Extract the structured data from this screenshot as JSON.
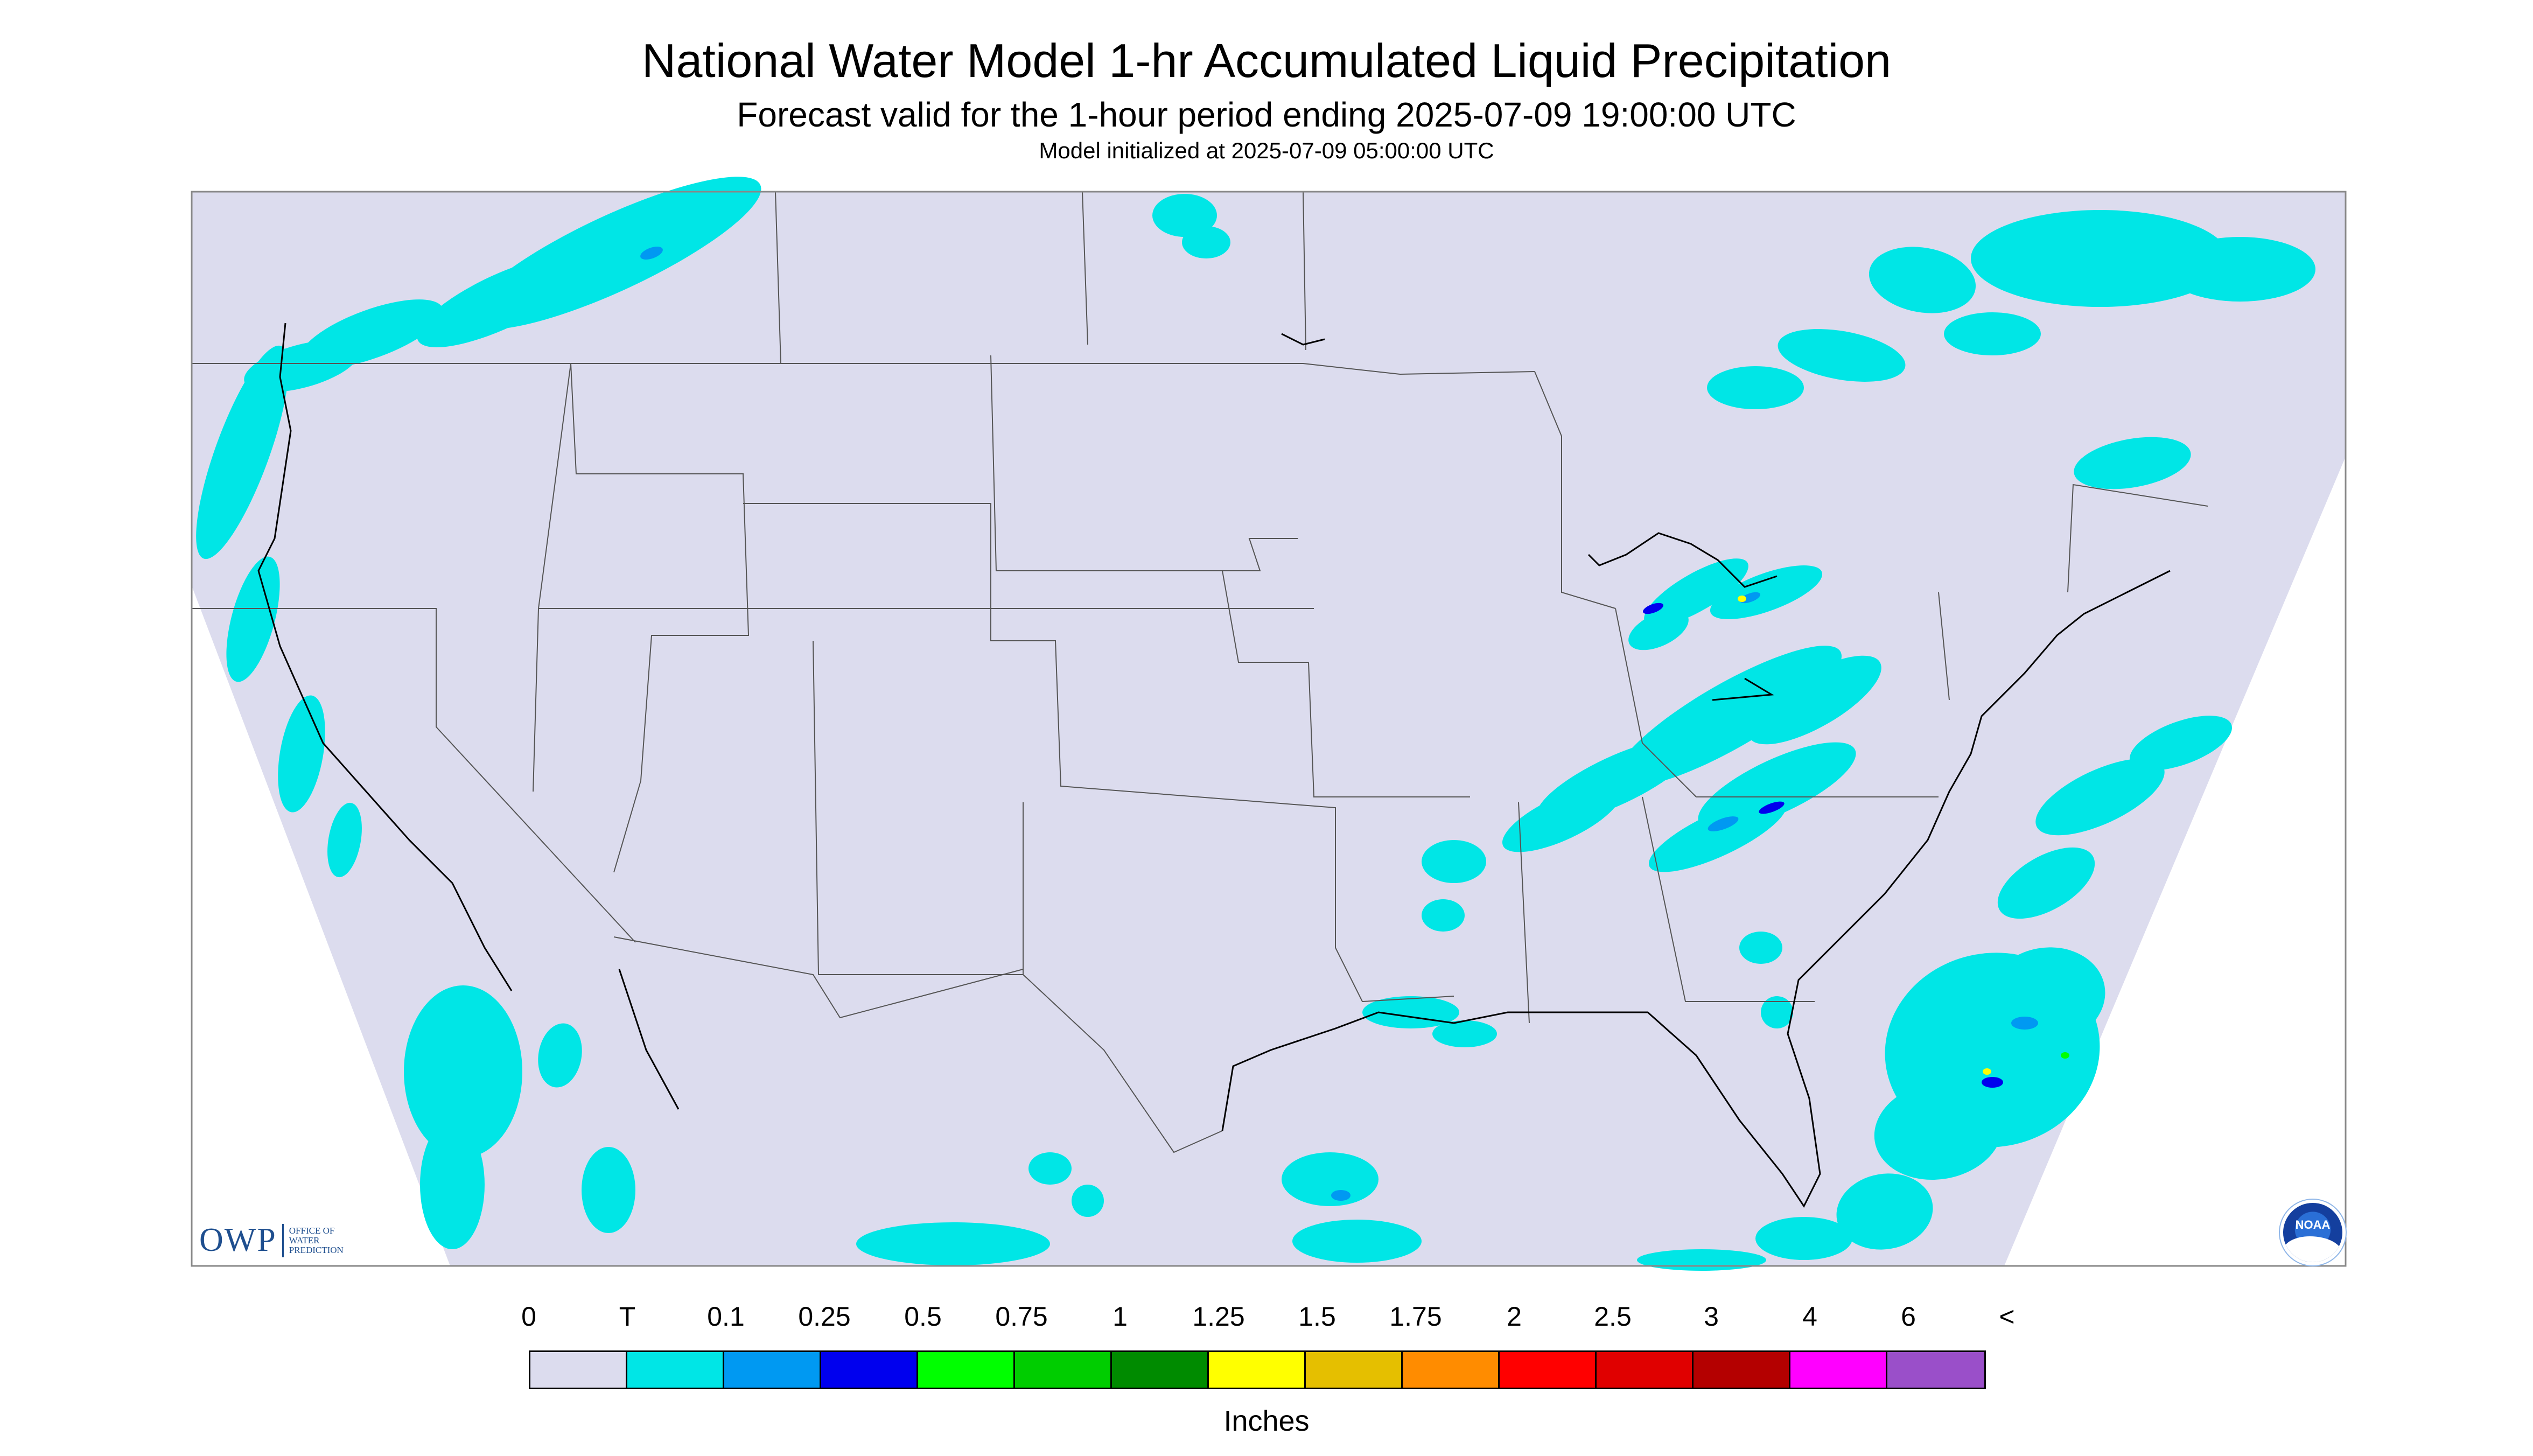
{
  "title": "National Water Model 1-hr Accumulated Liquid Precipitation",
  "subtitle": "Forecast valid for the 1-hour period ending 2025-07-09 19:00:00 UTC",
  "init_line": "Model initialized at 2025-07-09 05:00:00 UTC",
  "map": {
    "background_color": "#dcdcee",
    "outside_domain_color": "#ffffff",
    "boundary_color": "#555555",
    "coastline_color": "#000000"
  },
  "logos": {
    "owp_mark": "OWP",
    "owp_text": [
      "OFFICE OF",
      "WATER",
      "PREDICTION"
    ],
    "noaa_text": "NOAA"
  },
  "legend": {
    "unit_label": "Inches",
    "tick_labels": [
      "0",
      "T",
      "0.1",
      "0.25",
      "0.5",
      "0.75",
      "1",
      "1.25",
      "1.5",
      "1.75",
      "2",
      "2.5",
      "3",
      "4",
      "6",
      "<"
    ],
    "colors": [
      "#dcdcee",
      "#00e6e6",
      "#0099f2",
      "#0000ee",
      "#00ff00",
      "#00cd00",
      "#008b00",
      "#ffff00",
      "#e5bf00",
      "#ff8c00",
      "#ff0000",
      "#e00000",
      "#b40000",
      "#ff00ff",
      "#9a4fc9"
    ]
  },
  "precip_colors": {
    "trace": "#00e6e6",
    "light": "#0099f2",
    "moderate": "#0000ee",
    "heavy": "#00ff00",
    "very_heavy": "#ffff00"
  }
}
